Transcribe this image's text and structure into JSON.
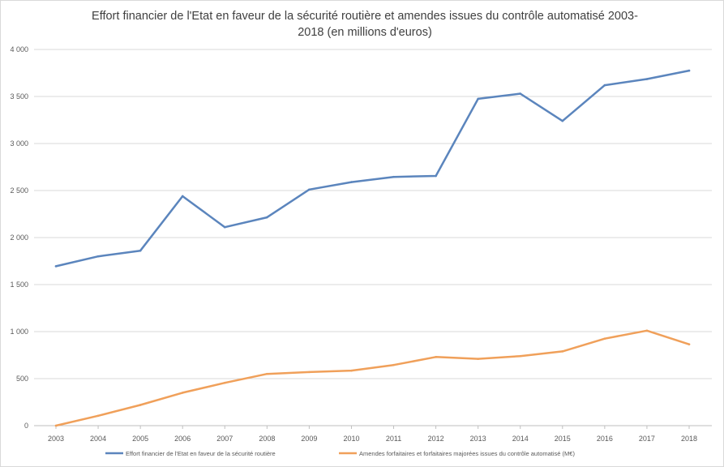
{
  "chart_data": {
    "type": "line",
    "title_line1": "Effort financier de l'Etat en faveur de la sécurité routière et amendes issues du contrôle automatisé 2003-",
    "title_line2": "2018 (en millions d'euros)",
    "xlabel": "",
    "ylabel": "",
    "x": [
      "2003",
      "2004",
      "2005",
      "2006",
      "2007",
      "2008",
      "2009",
      "2010",
      "2011",
      "2012",
      "2013",
      "2014",
      "2015",
      "2016",
      "2017",
      "2018"
    ],
    "ylim": [
      0,
      4000
    ],
    "yticks": [
      0,
      500,
      1000,
      1500,
      2000,
      2500,
      3000,
      3500,
      4000
    ],
    "ytick_labels": [
      "0",
      "500",
      "1 000",
      "1 500",
      "2 000",
      "2 500",
      "3 000",
      "3 500",
      "4 000"
    ],
    "grid": true,
    "legend_position": "bottom",
    "series": [
      {
        "name": "Effort financier de l'Etat en faveur de la sécurité routière",
        "color": "#5b85bd",
        "values": [
          1695,
          1800,
          1860,
          2440,
          2110,
          2215,
          2510,
          2590,
          2645,
          2655,
          3475,
          3530,
          3240,
          3620,
          3685,
          3775
        ]
      },
      {
        "name": "Amendes forfaitaires et forfaitaires majorées issues du contrôle automatisé (M€)",
        "color": "#f0a05a",
        "values": [
          0,
          105,
          220,
          350,
          455,
          550,
          570,
          585,
          645,
          730,
          710,
          740,
          790,
          925,
          1010,
          865
        ]
      }
    ]
  }
}
